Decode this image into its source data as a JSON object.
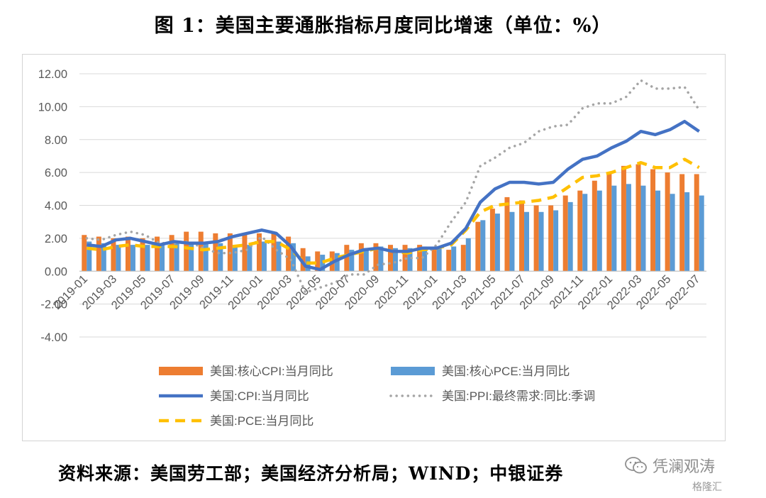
{
  "title": "图 1：美国主要通胀指标月度同比增速（单位：%）",
  "source": "资料来源：美国劳工部；美国经济分析局；WIND；中银证券",
  "watermark": "凭澜观涛",
  "watermark_brand": "格隆汇",
  "chart_data": {
    "type": "bar+line",
    "categories": [
      "2019-01",
      "2019-02",
      "2019-03",
      "2019-04",
      "2019-05",
      "2019-06",
      "2019-07",
      "2019-08",
      "2019-09",
      "2019-10",
      "2019-11",
      "2019-12",
      "2020-01",
      "2020-02",
      "2020-03",
      "2020-04",
      "2020-05",
      "2020-06",
      "2020-07",
      "2020-08",
      "2020-09",
      "2020-10",
      "2020-11",
      "2020-12",
      "2021-01",
      "2021-02",
      "2021-03",
      "2021-04",
      "2021-05",
      "2021-06",
      "2021-07",
      "2021-08",
      "2021-09",
      "2021-10",
      "2021-11",
      "2021-12",
      "2022-01",
      "2022-02",
      "2022-03",
      "2022-04",
      "2022-05",
      "2022-06",
      "2022-07"
    ],
    "tick_labels": [
      "2019-01",
      "2019-03",
      "2019-05",
      "2019-07",
      "2019-09",
      "2019-11",
      "2020-01",
      "2020-03",
      "2020-05",
      "2020-07",
      "2020-09",
      "2020-11",
      "2021-01",
      "2021-03",
      "2021-05",
      "2021-07",
      "2021-09",
      "2021-11",
      "2022-01",
      "2022-03",
      "2022-05",
      "2022-07"
    ],
    "ylim": [
      -4,
      12
    ],
    "y_ticks": [
      "12.00",
      "10.00",
      "8.00",
      "6.00",
      "4.00",
      "2.00",
      "0.00",
      "-2.00",
      "-4.00"
    ],
    "legend_position": "bottom",
    "series": [
      {
        "name": "美国:核心CPI:当月同比",
        "type": "bar",
        "color": "#ed7d31",
        "values": [
          2.2,
          2.1,
          2.0,
          2.1,
          2.0,
          2.1,
          2.2,
          2.4,
          2.4,
          2.3,
          2.3,
          2.3,
          2.3,
          2.4,
          2.1,
          1.4,
          1.2,
          1.2,
          1.6,
          1.7,
          1.7,
          1.6,
          1.6,
          1.6,
          1.4,
          1.3,
          1.6,
          3.0,
          3.8,
          4.5,
          4.3,
          4.0,
          4.0,
          4.6,
          4.9,
          5.5,
          6.0,
          6.4,
          6.5,
          6.2,
          6.0,
          5.9,
          5.9
        ]
      },
      {
        "name": "美国:核心PCE:当月同比",
        "type": "bar",
        "color": "#5b9bd5",
        "values": [
          1.8,
          1.7,
          1.6,
          1.6,
          1.6,
          1.7,
          1.7,
          1.8,
          1.7,
          1.7,
          1.6,
          1.6,
          1.8,
          1.8,
          1.7,
          0.9,
          1.0,
          1.1,
          1.3,
          1.4,
          1.5,
          1.4,
          1.4,
          1.5,
          1.5,
          1.5,
          2.0,
          3.1,
          3.5,
          3.6,
          3.6,
          3.6,
          3.7,
          4.2,
          4.7,
          4.9,
          5.2,
          5.3,
          5.2,
          4.9,
          4.7,
          4.8,
          4.6
        ]
      },
      {
        "name": "美国:CPI:当月同比",
        "type": "line",
        "dash": "solid",
        "color": "#4472c4",
        "values": [
          1.6,
          1.5,
          1.9,
          2.0,
          1.8,
          1.6,
          1.8,
          1.7,
          1.7,
          1.8,
          2.1,
          2.3,
          2.5,
          2.3,
          1.5,
          0.3,
          0.1,
          0.6,
          1.0,
          1.3,
          1.4,
          1.2,
          1.2,
          1.4,
          1.4,
          1.7,
          2.6,
          4.2,
          5.0,
          5.4,
          5.4,
          5.3,
          5.4,
          6.2,
          6.8,
          7.0,
          7.5,
          7.9,
          8.5,
          8.3,
          8.6,
          9.1,
          8.5
        ]
      },
      {
        "name": "美国:PPI:最终需求:同比:季调",
        "type": "line",
        "dash": "dotted",
        "color": "#a5a5a5",
        "values": [
          2.0,
          1.9,
          2.2,
          2.4,
          2.2,
          1.7,
          1.7,
          1.8,
          1.4,
          1.1,
          1.1,
          1.3,
          2.1,
          1.3,
          0.7,
          -1.3,
          -1.0,
          -0.7,
          -0.2,
          -0.2,
          0.4,
          0.5,
          0.8,
          0.8,
          1.6,
          3.0,
          4.2,
          6.4,
          6.9,
          7.5,
          7.8,
          8.5,
          8.8,
          8.9,
          9.9,
          10.2,
          10.2,
          10.6,
          11.6,
          11.1,
          11.1,
          11.2,
          9.8
        ]
      },
      {
        "name": "美国:PCE:当月同比",
        "type": "line",
        "dash": "dashed",
        "color": "#ffc000",
        "values": [
          1.4,
          1.3,
          1.5,
          1.6,
          1.5,
          1.5,
          1.5,
          1.4,
          1.3,
          1.4,
          1.5,
          1.6,
          1.8,
          1.8,
          1.3,
          0.5,
          0.5,
          0.8,
          1.0,
          1.2,
          1.4,
          1.2,
          1.1,
          1.3,
          1.4,
          1.6,
          2.5,
          3.6,
          4.0,
          4.1,
          4.2,
          4.3,
          4.5,
          5.1,
          5.7,
          5.8,
          6.0,
          6.3,
          6.6,
          6.3,
          6.3,
          6.8,
          6.3
        ]
      }
    ]
  }
}
